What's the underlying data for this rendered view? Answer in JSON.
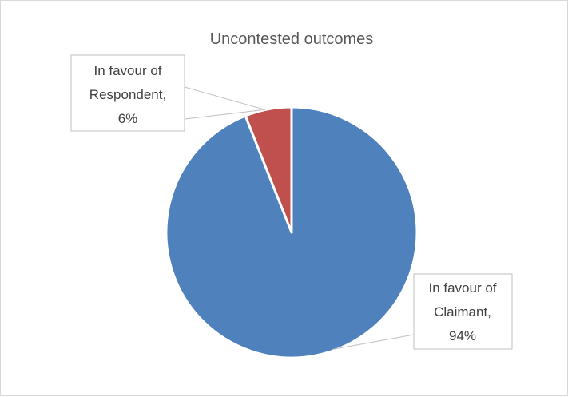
{
  "chart_data": {
    "type": "pie",
    "title": "Uncontested outcomes",
    "slices": [
      {
        "label_lines": [
          "In favour of",
          "Claimant,",
          "94%"
        ],
        "value": 94,
        "color": "#4f81bd"
      },
      {
        "label_lines": [
          "In favour of",
          "Respondent,",
          "6%"
        ],
        "value": 6,
        "color": "#c0504d"
      }
    ],
    "start_angle_deg": 0,
    "direction": "clockwise",
    "legend": "none",
    "data_labels": "outside with leader lines"
  }
}
